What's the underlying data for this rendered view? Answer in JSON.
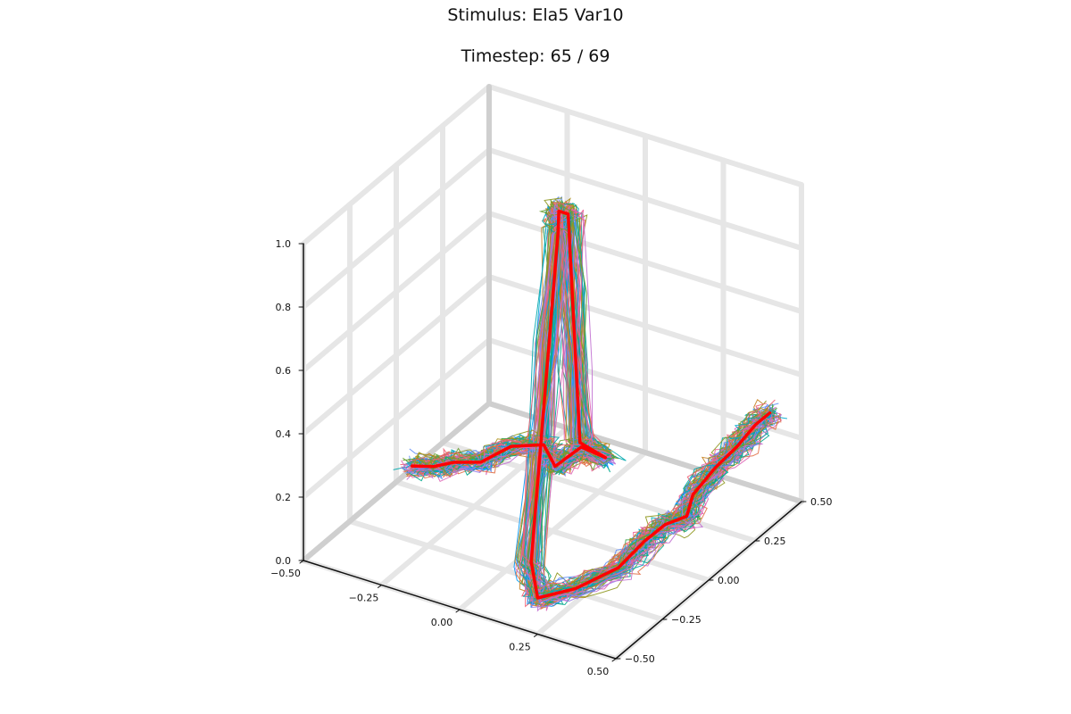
{
  "chart_data": {
    "type": "line",
    "title": "Stimulus: Ela5 Var10",
    "subtitle": "Timestep: 65 / 69",
    "dimensions": 3,
    "xlim": [
      -0.5,
      0.5
    ],
    "ylim": [
      -0.5,
      0.5
    ],
    "zlim": [
      0.0,
      1.0
    ],
    "xticks": [
      -0.5,
      -0.25,
      0.0,
      0.25,
      0.5
    ],
    "yticks": [
      -0.5,
      -0.25,
      0.0,
      0.25,
      0.5
    ],
    "zticks": [
      0.0,
      0.2,
      0.4,
      0.6,
      0.8,
      1.0
    ],
    "xtick_labels": [
      "−0.50",
      "−0.25",
      "0.00",
      "0.25",
      "0.50"
    ],
    "ytick_labels": [
      "−0.50",
      "−0.25",
      "0.00",
      "0.25",
      "0.50"
    ],
    "ztick_labels": [
      "0.0",
      "0.2",
      "0.4",
      "0.6",
      "0.8",
      "1.0"
    ],
    "grid": true,
    "legend": "none",
    "series_colors": [
      "#009af9",
      "#e26f46",
      "#3da44d",
      "#c271d2",
      "#ac8e18",
      "#00a9ad",
      "#ed5e93",
      "#c68225",
      "#00a98d",
      "#8e971e",
      "#00a9cd",
      "#9b7fe8",
      "#618df6",
      "#f05f73",
      "#dd64b5",
      "#6b9e32"
    ],
    "target": {
      "color": "#ff0000",
      "points": [
        [
          -0.42,
          -0.05,
          0.1
        ],
        [
          -0.35,
          -0.05,
          0.12
        ],
        [
          -0.28,
          -0.06,
          0.16
        ],
        [
          -0.2,
          -0.05,
          0.18
        ],
        [
          -0.12,
          -0.02,
          0.24
        ],
        [
          -0.04,
          0.02,
          0.25
        ],
        [
          0.0,
          0.0,
          0.22
        ],
        [
          0.02,
          -0.02,
          0.22
        ],
        [
          0.08,
          0.02,
          0.28
        ],
        [
          0.14,
          0.05,
          0.25
        ],
        [
          0.1,
          -0.02,
          0.32
        ],
        [
          0.08,
          -0.05,
          1.05
        ],
        [
          0.05,
          -0.05,
          1.05
        ],
        [
          0.06,
          -0.07,
          1.0
        ],
        [
          0.14,
          -0.35,
          0.12
        ],
        [
          0.22,
          -0.45,
          0.08
        ],
        [
          0.3,
          -0.38,
          0.1
        ],
        [
          0.36,
          -0.25,
          0.12
        ],
        [
          0.4,
          -0.18,
          0.18
        ],
        [
          0.42,
          -0.1,
          0.2
        ],
        [
          0.43,
          0.0,
          0.18
        ],
        [
          0.42,
          0.05,
          0.22
        ],
        [
          0.45,
          0.12,
          0.28
        ],
        [
          0.46,
          0.22,
          0.3
        ],
        [
          0.46,
          0.32,
          0.32
        ],
        [
          0.47,
          0.38,
          0.33
        ]
      ]
    }
  }
}
